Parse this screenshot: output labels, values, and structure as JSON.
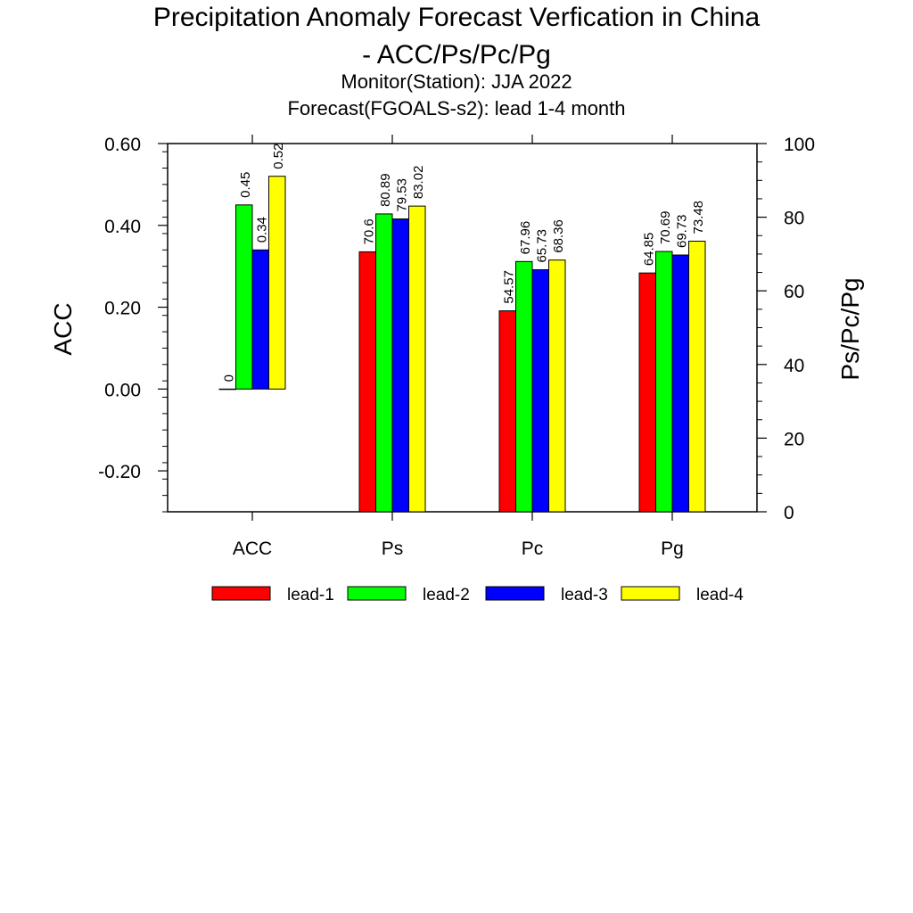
{
  "chart_data": {
    "type": "bar",
    "title_line1": "Precipitation Anomaly Forecast Verfication in China",
    "title_line2": "- ACC/Ps/Pc/Pg",
    "subtitle_line1": "Monitor(Station): JJA 2022",
    "subtitle_line2": "Forecast(FGOALS-s2): lead 1-4 month",
    "categories": [
      "ACC",
      "Ps",
      "Pc",
      "Pg"
    ],
    "series": [
      {
        "name": "lead-1",
        "color": "#ff0000",
        "values": [
          0,
          70.6,
          54.57,
          64.85
        ],
        "labels": [
          "0",
          "70.6",
          "54.57",
          "64.85"
        ]
      },
      {
        "name": "lead-2",
        "color": "#00ff00",
        "values": [
          0.45,
          80.89,
          67.96,
          70.69
        ],
        "labels": [
          "0.45",
          "80.89",
          "67.96",
          "70.69"
        ]
      },
      {
        "name": "lead-3",
        "color": "#0000ff",
        "values": [
          0.34,
          79.53,
          65.73,
          69.73
        ],
        "labels": [
          "0.34",
          "79.53",
          "65.73",
          "69.73"
        ]
      },
      {
        "name": "lead-4",
        "color": "#ffff00",
        "values": [
          0.52,
          83.02,
          68.36,
          73.48
        ],
        "labels": [
          "0.52",
          "83.02",
          "68.36",
          "73.48"
        ]
      }
    ],
    "left_axis": {
      "label": "ACC",
      "ylim": [
        -0.3,
        0.6
      ],
      "ticks": [
        -0.2,
        0.0,
        0.2,
        0.4,
        0.6
      ],
      "tick_labels": [
        "-0.20",
        "0.00",
        "0.20",
        "0.40",
        "0.60"
      ],
      "applies_to": [
        "ACC"
      ]
    },
    "right_axis": {
      "label": "Ps/Pc/Pg",
      "ylim": [
        0,
        100
      ],
      "ticks": [
        0,
        20,
        40,
        60,
        80,
        100
      ],
      "tick_labels": [
        "0",
        "20",
        "40",
        "60",
        "80",
        "100"
      ],
      "applies_to": [
        "Ps",
        "Pc",
        "Pg"
      ]
    },
    "grid": false,
    "legend_position": "bottom"
  }
}
